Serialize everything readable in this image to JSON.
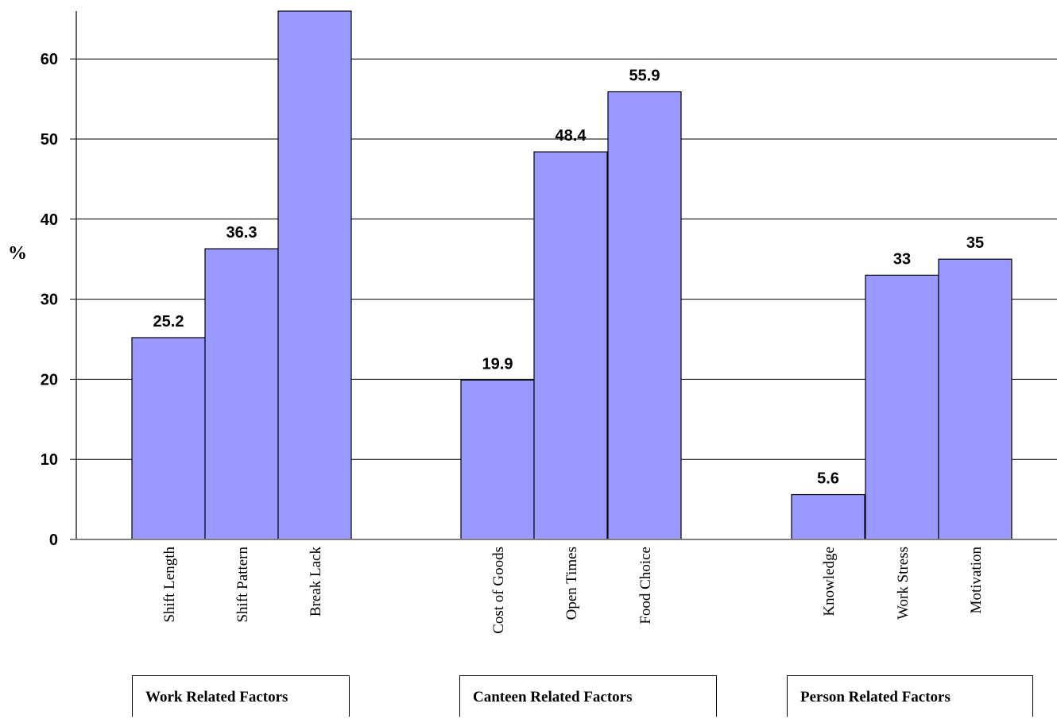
{
  "chart_data": {
    "type": "bar",
    "ylabel": "%",
    "ylim": [
      0,
      66
    ],
    "yticks": [
      0,
      10,
      20,
      30,
      40,
      50,
      60
    ],
    "grid": true,
    "categories": [
      "Shift Length",
      "Shift Pattern",
      "Break Lack",
      "Cost of Goods",
      "Open Times",
      "Food Choice",
      "Knowledge",
      "Work Stress",
      "Motivation"
    ],
    "values": [
      25.2,
      36.3,
      70,
      19.9,
      48.4,
      55.9,
      5.6,
      33,
      35
    ],
    "data_labels": [
      "25.2",
      "36.3",
      "",
      "19.9",
      "48.4",
      "55.9",
      "5.6",
      "33",
      "35"
    ],
    "groups": [
      {
        "name": "Work Related Factors",
        "categories": [
          "Shift Length",
          "Shift Pattern",
          "Break Lack"
        ]
      },
      {
        "name": "Canteen Related Factors",
        "categories": [
          "Cost of Goods",
          "Open Times",
          "Food Choice"
        ]
      },
      {
        "name": "Person Related Factors",
        "categories": [
          "Knowledge",
          "Work Stress",
          "Motivation"
        ]
      }
    ],
    "bar_color": "#9999ff"
  }
}
